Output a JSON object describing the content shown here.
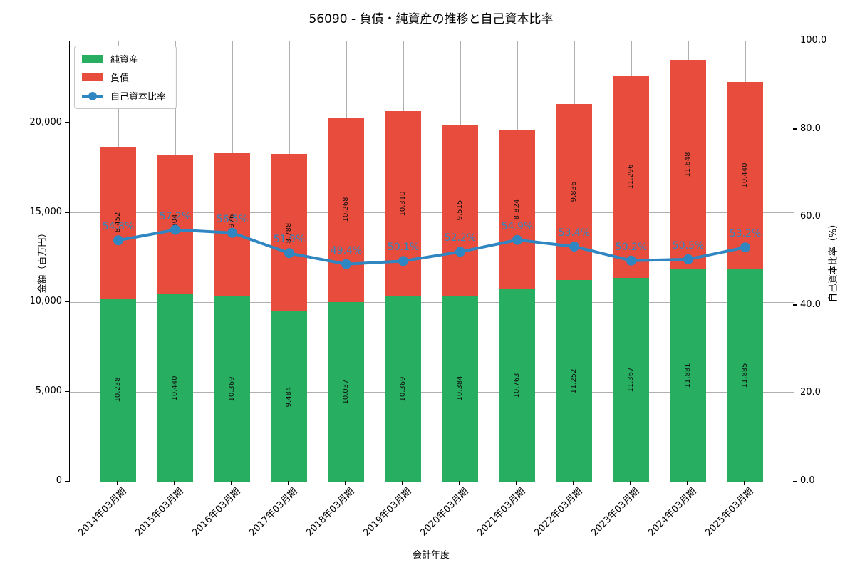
{
  "chart_data": {
    "type": "bar",
    "stacked": true,
    "title": "56090 - 負債・純資産の推移と自己資本比率",
    "xlabel": "会計年度",
    "ylabel_left": "金額（百万円）",
    "ylabel_right": "自己資本比率（%）",
    "categories": [
      "2014年03月期",
      "2015年03月期",
      "2016年03月期",
      "2017年03月期",
      "2018年03月期",
      "2019年03月期",
      "2020年03月期",
      "2021年03月期",
      "2022年03月期",
      "2023年03月期",
      "2024年03月期",
      "2025年03月期"
    ],
    "series": [
      {
        "name": "純資産",
        "color": "#27ae60",
        "values": [
          10238,
          10440,
          10369,
          9484,
          10037,
          10369,
          10384,
          10763,
          11252,
          11367,
          11881,
          11885
        ]
      },
      {
        "name": "負債",
        "color": "#e74c3c",
        "values": [
          8452,
          7804,
          7976,
          8788,
          10268,
          10310,
          9515,
          8824,
          9836,
          11296,
          11648,
          10440
        ]
      }
    ],
    "line_series": {
      "name": "自己資本比率",
      "color": "#2f86c1",
      "unit": "%",
      "values": [
        54.8,
        57.2,
        56.5,
        51.9,
        49.4,
        50.1,
        52.2,
        54.9,
        53.4,
        50.2,
        50.5,
        53.2
      ]
    },
    "ylim_left": [
      0,
      24572
    ],
    "ytick_values_left": [
      0,
      5000,
      10000,
      15000,
      20000
    ],
    "ytick_labels_left": [
      "0",
      "5,000",
      "10,000",
      "15,000",
      "20,000"
    ],
    "ylim_right": [
      0,
      100
    ],
    "ytick_values_right": [
      0,
      20,
      40,
      60,
      80,
      100
    ],
    "ytick_labels_right": [
      "0.0",
      "20.0",
      "40.0",
      "60.0",
      "80.0",
      "100.0"
    ],
    "grid": true,
    "legend_position": "upper-left"
  }
}
